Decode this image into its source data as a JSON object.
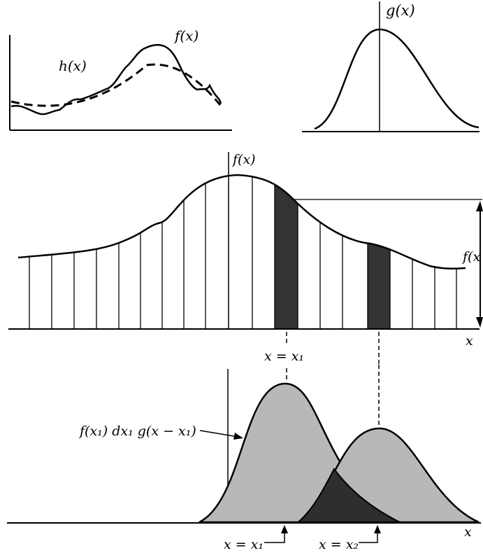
{
  "labels": {
    "fx_top": "f(x)",
    "hx": "h(x)",
    "gx": "g(x)",
    "fx_mid": "f(x)",
    "fx_right": "f(x",
    "x_axis_mid": "x",
    "x_eq_x1_mid": "x = x₁",
    "product": "f(x₁) dx₁ g(x − x₁)",
    "x_eq_x1_bottom": "x = x₁",
    "x_eq_x2_bottom": "x = x₂",
    "x_axis_bottom": "x"
  },
  "colors": {
    "ink": "#000000",
    "strip_fill": "#333333",
    "curve_fill": "#b8b8b8",
    "overlap_fill": "#2e2e2e"
  }
}
